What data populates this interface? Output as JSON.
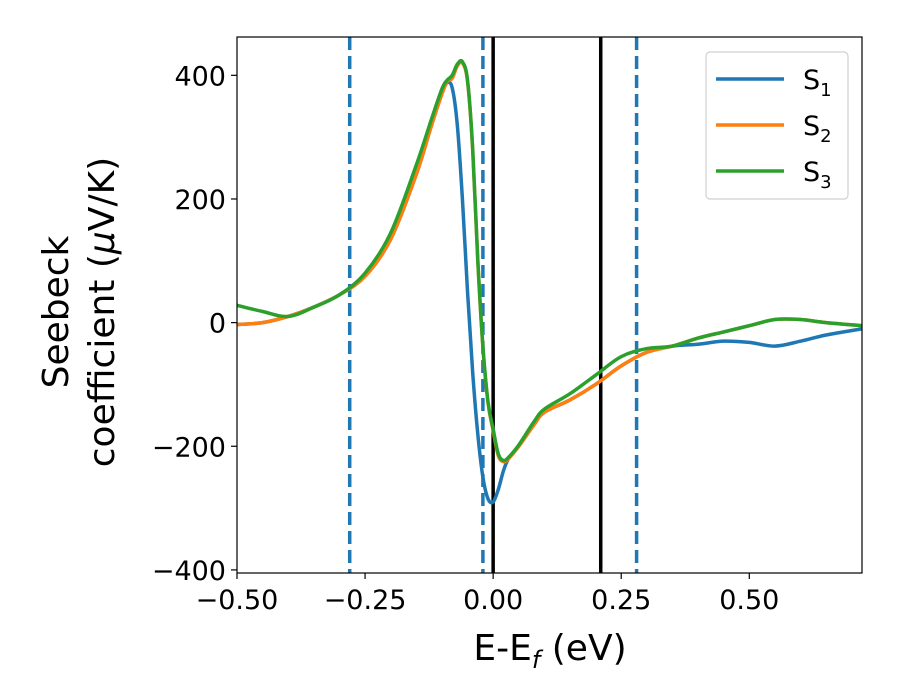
{
  "chart_data": {
    "type": "line",
    "xlabel": {
      "main": "E-E",
      "sub": "f",
      "tail": " (eV)"
    },
    "ylabel": {
      "line1": "Seebeck",
      "line2_main": "coefficient  (",
      "line2_mu": "μ",
      "line2_tail": "V/K)"
    },
    "xlim": [
      -0.5,
      0.72
    ],
    "ylim": [
      -405,
      462
    ],
    "xticks": [
      -0.5,
      -0.25,
      0.0,
      0.25,
      0.5
    ],
    "xtick_labels": [
      "−0.50",
      "−0.25",
      "0.00",
      "0.25",
      "0.50"
    ],
    "yticks": [
      -400,
      -200,
      0,
      200,
      400
    ],
    "ytick_labels": [
      "−400",
      "−200",
      "0",
      "200",
      "400"
    ],
    "grid": false,
    "legend_position": "top-right",
    "vlines_dashed": [
      -0.28,
      -0.02,
      0.28
    ],
    "vlines_solid": [
      0.0,
      0.21
    ],
    "series": [
      {
        "name": "S",
        "sub": "1",
        "color": "#1f77b4",
        "x": [
          -0.5,
          -0.45,
          -0.4,
          -0.35,
          -0.3,
          -0.25,
          -0.2,
          -0.15,
          -0.12,
          -0.1,
          -0.09,
          -0.08,
          -0.07,
          -0.06,
          -0.05,
          -0.04,
          -0.03,
          -0.02,
          -0.01,
          0.0,
          0.01,
          0.02,
          0.03,
          0.05,
          0.08,
          0.1,
          0.15,
          0.2,
          0.25,
          0.3,
          0.35,
          0.4,
          0.45,
          0.5,
          0.55,
          0.6,
          0.65,
          0.72
        ],
        "y": [
          -3,
          0,
          10,
          25,
          45,
          75,
          135,
          240,
          320,
          370,
          388,
          380,
          320,
          200,
          50,
          -80,
          -180,
          -250,
          -285,
          -290,
          -270,
          -240,
          -220,
          -200,
          -165,
          -145,
          -125,
          -100,
          -70,
          -48,
          -38,
          -35,
          -30,
          -32,
          -38,
          -30,
          -20,
          -10
        ]
      },
      {
        "name": "S",
        "sub": "2",
        "color": "#ff7f0e",
        "x": [
          -0.5,
          -0.45,
          -0.4,
          -0.35,
          -0.3,
          -0.25,
          -0.2,
          -0.15,
          -0.12,
          -0.1,
          -0.09,
          -0.08,
          -0.07,
          -0.06,
          -0.05,
          -0.04,
          -0.03,
          -0.02,
          -0.01,
          0.0,
          0.01,
          0.02,
          0.03,
          0.05,
          0.08,
          0.1,
          0.15,
          0.2,
          0.25,
          0.3,
          0.35,
          0.4,
          0.45,
          0.5,
          0.55,
          0.6,
          0.65,
          0.72
        ],
        "y": [
          -3,
          0,
          10,
          25,
          45,
          75,
          135,
          240,
          320,
          370,
          390,
          395,
          415,
          420,
          390,
          280,
          100,
          -40,
          -130,
          -175,
          -215,
          -225,
          -220,
          -200,
          -165,
          -145,
          -125,
          -100,
          -70,
          -48,
          -38,
          -25,
          -15,
          -5,
          5,
          5,
          0,
          -5
        ]
      },
      {
        "name": "S",
        "sub": "3",
        "color": "#2ca02c",
        "x": [
          -0.5,
          -0.45,
          -0.4,
          -0.35,
          -0.3,
          -0.25,
          -0.2,
          -0.15,
          -0.12,
          -0.1,
          -0.09,
          -0.08,
          -0.07,
          -0.06,
          -0.05,
          -0.04,
          -0.03,
          -0.02,
          -0.01,
          0.0,
          0.01,
          0.02,
          0.03,
          0.05,
          0.08,
          0.1,
          0.15,
          0.2,
          0.25,
          0.3,
          0.35,
          0.4,
          0.45,
          0.5,
          0.55,
          0.6,
          0.65,
          0.72
        ],
        "y": [
          28,
          18,
          10,
          25,
          45,
          80,
          145,
          255,
          330,
          378,
          392,
          400,
          418,
          422,
          392,
          282,
          102,
          -38,
          -128,
          -172,
          -212,
          -223,
          -218,
          -198,
          -160,
          -140,
          -115,
          -85,
          -55,
          -42,
          -38,
          -25,
          -15,
          -5,
          5,
          5,
          0,
          -5
        ]
      }
    ]
  }
}
